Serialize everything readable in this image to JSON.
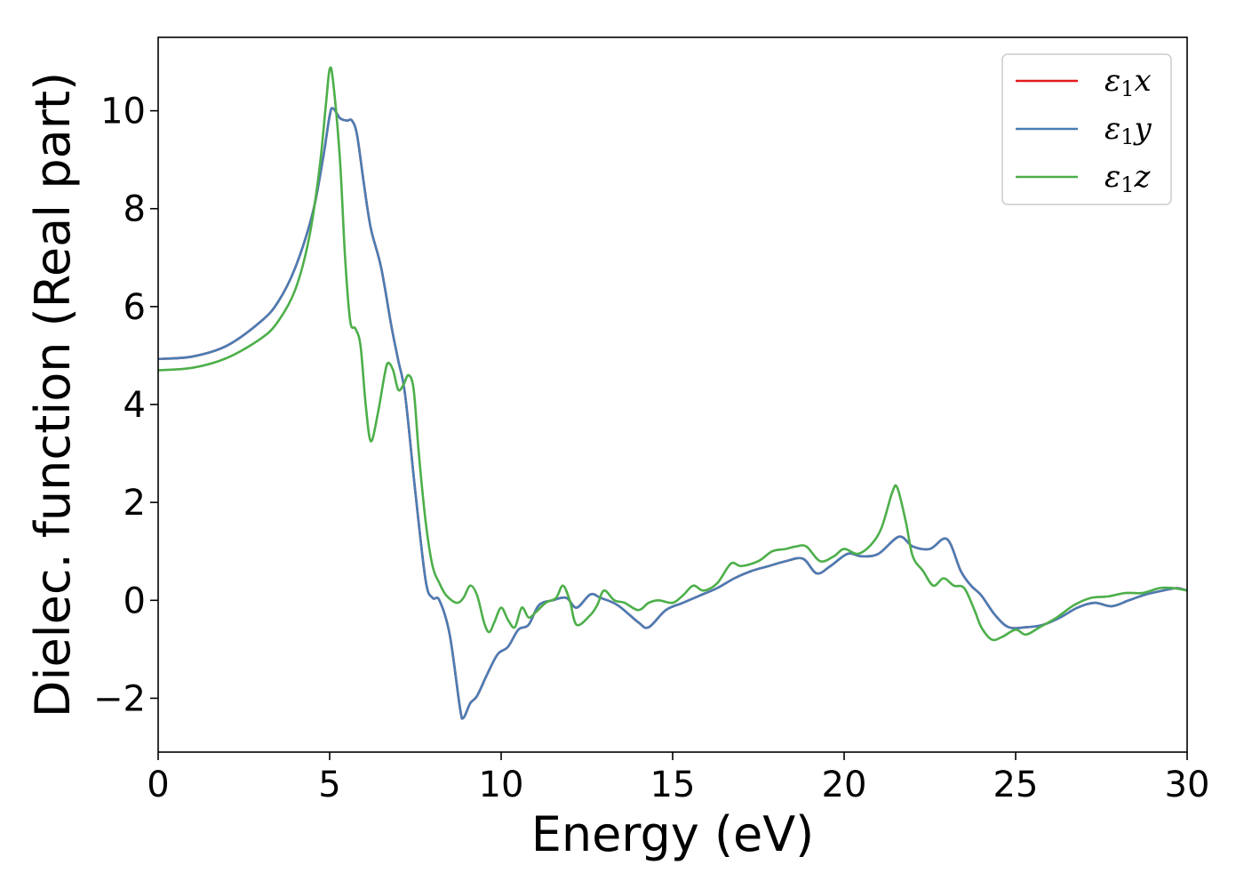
{
  "chart_data": {
    "type": "line",
    "title": "",
    "xlabel": "Energy (eV)",
    "ylabel": "Dielec. function (Real part)",
    "xlim": [
      0,
      30
    ],
    "ylim": [
      -3.1,
      11.5
    ],
    "xticks": [
      0,
      5,
      10,
      15,
      20,
      25,
      30
    ],
    "xtick_labels": [
      "0",
      "5",
      "10",
      "15",
      "20",
      "25",
      "30"
    ],
    "yticks": [
      -2,
      0,
      2,
      4,
      6,
      8,
      10
    ],
    "ytick_labels": [
      "−2",
      "0",
      "2",
      "4",
      "6",
      "8",
      "10"
    ],
    "grid": false,
    "legend": "top-right",
    "series": [
      {
        "name": "ε1x",
        "name_base": "ε",
        "name_sub": "1",
        "name_suffix": "x",
        "color": "#e41a1c",
        "points": [
          [
            0,
            4.93
          ],
          [
            1,
            4.98
          ],
          [
            2,
            5.2
          ],
          [
            3,
            5.7
          ],
          [
            3.5,
            6.1
          ],
          [
            4,
            6.8
          ],
          [
            4.5,
            7.9
          ],
          [
            4.8,
            9.0
          ],
          [
            5.0,
            9.9
          ],
          [
            5.1,
            10.05
          ],
          [
            5.3,
            9.85
          ],
          [
            5.5,
            9.8
          ],
          [
            5.65,
            9.8
          ],
          [
            5.8,
            9.5
          ],
          [
            6.0,
            8.5
          ],
          [
            6.2,
            7.6
          ],
          [
            6.5,
            6.8
          ],
          [
            6.8,
            5.6
          ],
          [
            7.0,
            4.9
          ],
          [
            7.2,
            4.2
          ],
          [
            7.5,
            2.2
          ],
          [
            7.8,
            0.4
          ],
          [
            8.0,
            0.05
          ],
          [
            8.2,
            0.0
          ],
          [
            8.5,
            -0.7
          ],
          [
            8.8,
            -2.2
          ],
          [
            8.9,
            -2.4
          ],
          [
            9.1,
            -2.1
          ],
          [
            9.3,
            -1.95
          ],
          [
            9.6,
            -1.5
          ],
          [
            9.9,
            -1.1
          ],
          [
            10.2,
            -0.95
          ],
          [
            10.5,
            -0.6
          ],
          [
            10.8,
            -0.5
          ],
          [
            11.1,
            -0.1
          ],
          [
            11.5,
            0.0
          ],
          [
            11.9,
            0.05
          ],
          [
            12.2,
            -0.15
          ],
          [
            12.6,
            0.12
          ],
          [
            12.9,
            0.05
          ],
          [
            13.4,
            -0.1
          ],
          [
            14.0,
            -0.45
          ],
          [
            14.3,
            -0.55
          ],
          [
            14.8,
            -0.2
          ],
          [
            15.3,
            -0.05
          ],
          [
            15.8,
            0.1
          ],
          [
            16.3,
            0.25
          ],
          [
            16.8,
            0.45
          ],
          [
            17.3,
            0.6
          ],
          [
            17.8,
            0.7
          ],
          [
            18.3,
            0.8
          ],
          [
            18.8,
            0.85
          ],
          [
            19.2,
            0.55
          ],
          [
            19.6,
            0.7
          ],
          [
            20.1,
            0.95
          ],
          [
            20.5,
            0.9
          ],
          [
            21.0,
            0.95
          ],
          [
            21.6,
            1.3
          ],
          [
            22.0,
            1.1
          ],
          [
            22.5,
            1.05
          ],
          [
            23.0,
            1.25
          ],
          [
            23.4,
            0.6
          ],
          [
            23.7,
            0.3
          ],
          [
            24.0,
            0.1
          ],
          [
            24.4,
            -0.3
          ],
          [
            24.8,
            -0.55
          ],
          [
            25.3,
            -0.55
          ],
          [
            25.8,
            -0.5
          ],
          [
            26.3,
            -0.35
          ],
          [
            26.8,
            -0.15
          ],
          [
            27.3,
            -0.05
          ],
          [
            27.8,
            -0.12
          ],
          [
            28.3,
            0.0
          ],
          [
            28.8,
            0.12
          ],
          [
            29.3,
            0.2
          ],
          [
            29.7,
            0.25
          ],
          [
            30,
            0.2
          ]
        ]
      },
      {
        "name": "ε1y",
        "name_base": "ε",
        "name_sub": "1",
        "name_suffix": "y",
        "color": "#4a7db5",
        "points": [
          [
            0,
            4.93
          ],
          [
            1,
            4.98
          ],
          [
            2,
            5.2
          ],
          [
            3,
            5.7
          ],
          [
            3.5,
            6.1
          ],
          [
            4,
            6.8
          ],
          [
            4.5,
            7.9
          ],
          [
            4.8,
            9.0
          ],
          [
            5.0,
            9.9
          ],
          [
            5.1,
            10.05
          ],
          [
            5.3,
            9.85
          ],
          [
            5.5,
            9.8
          ],
          [
            5.65,
            9.8
          ],
          [
            5.8,
            9.5
          ],
          [
            6.0,
            8.5
          ],
          [
            6.2,
            7.6
          ],
          [
            6.5,
            6.8
          ],
          [
            6.8,
            5.6
          ],
          [
            7.0,
            4.9
          ],
          [
            7.2,
            4.2
          ],
          [
            7.5,
            2.2
          ],
          [
            7.8,
            0.4
          ],
          [
            8.0,
            0.05
          ],
          [
            8.2,
            0.0
          ],
          [
            8.5,
            -0.7
          ],
          [
            8.8,
            -2.2
          ],
          [
            8.9,
            -2.4
          ],
          [
            9.1,
            -2.1
          ],
          [
            9.3,
            -1.95
          ],
          [
            9.6,
            -1.5
          ],
          [
            9.9,
            -1.1
          ],
          [
            10.2,
            -0.95
          ],
          [
            10.5,
            -0.6
          ],
          [
            10.8,
            -0.5
          ],
          [
            11.1,
            -0.1
          ],
          [
            11.5,
            0.0
          ],
          [
            11.9,
            0.05
          ],
          [
            12.2,
            -0.15
          ],
          [
            12.6,
            0.12
          ],
          [
            12.9,
            0.05
          ],
          [
            13.4,
            -0.1
          ],
          [
            14.0,
            -0.45
          ],
          [
            14.3,
            -0.55
          ],
          [
            14.8,
            -0.2
          ],
          [
            15.3,
            -0.05
          ],
          [
            15.8,
            0.1
          ],
          [
            16.3,
            0.25
          ],
          [
            16.8,
            0.45
          ],
          [
            17.3,
            0.6
          ],
          [
            17.8,
            0.7
          ],
          [
            18.3,
            0.8
          ],
          [
            18.8,
            0.85
          ],
          [
            19.2,
            0.55
          ],
          [
            19.6,
            0.7
          ],
          [
            20.1,
            0.95
          ],
          [
            20.5,
            0.9
          ],
          [
            21.0,
            0.95
          ],
          [
            21.6,
            1.3
          ],
          [
            22.0,
            1.1
          ],
          [
            22.5,
            1.05
          ],
          [
            23.0,
            1.25
          ],
          [
            23.4,
            0.6
          ],
          [
            23.7,
            0.3
          ],
          [
            24.0,
            0.1
          ],
          [
            24.4,
            -0.3
          ],
          [
            24.8,
            -0.55
          ],
          [
            25.3,
            -0.55
          ],
          [
            25.8,
            -0.5
          ],
          [
            26.3,
            -0.35
          ],
          [
            26.8,
            -0.15
          ],
          [
            27.3,
            -0.05
          ],
          [
            27.8,
            -0.12
          ],
          [
            28.3,
            0.0
          ],
          [
            28.8,
            0.12
          ],
          [
            29.3,
            0.2
          ],
          [
            29.7,
            0.25
          ],
          [
            30,
            0.2
          ]
        ]
      },
      {
        "name": "ε1z",
        "name_base": "ε",
        "name_sub": "1",
        "name_suffix": "z",
        "color": "#4daf4a",
        "points": [
          [
            0,
            4.7
          ],
          [
            1,
            4.75
          ],
          [
            2,
            4.95
          ],
          [
            3,
            5.35
          ],
          [
            3.5,
            5.7
          ],
          [
            4,
            6.35
          ],
          [
            4.4,
            7.4
          ],
          [
            4.7,
            8.8
          ],
          [
            4.9,
            10.2
          ],
          [
            5.0,
            10.85
          ],
          [
            5.1,
            10.6
          ],
          [
            5.3,
            9.0
          ],
          [
            5.45,
            7.0
          ],
          [
            5.6,
            5.7
          ],
          [
            5.75,
            5.55
          ],
          [
            5.9,
            5.2
          ],
          [
            6.05,
            4.0
          ],
          [
            6.2,
            3.25
          ],
          [
            6.4,
            3.8
          ],
          [
            6.6,
            4.6
          ],
          [
            6.7,
            4.85
          ],
          [
            6.85,
            4.7
          ],
          [
            7.0,
            4.3
          ],
          [
            7.15,
            4.4
          ],
          [
            7.3,
            4.6
          ],
          [
            7.45,
            4.3
          ],
          [
            7.6,
            3.0
          ],
          [
            7.8,
            1.6
          ],
          [
            8.0,
            0.7
          ],
          [
            8.2,
            0.35
          ],
          [
            8.4,
            0.1
          ],
          [
            8.7,
            -0.05
          ],
          [
            8.9,
            0.05
          ],
          [
            9.1,
            0.3
          ],
          [
            9.3,
            0.1
          ],
          [
            9.5,
            -0.45
          ],
          [
            9.65,
            -0.65
          ],
          [
            9.8,
            -0.45
          ],
          [
            10.0,
            -0.15
          ],
          [
            10.2,
            -0.4
          ],
          [
            10.4,
            -0.55
          ],
          [
            10.6,
            -0.15
          ],
          [
            10.8,
            -0.35
          ],
          [
            11.0,
            -0.25
          ],
          [
            11.3,
            -0.05
          ],
          [
            11.6,
            0.05
          ],
          [
            11.8,
            0.3
          ],
          [
            12.0,
            0.0
          ],
          [
            12.2,
            -0.5
          ],
          [
            12.6,
            -0.3
          ],
          [
            12.8,
            -0.1
          ],
          [
            13.0,
            0.2
          ],
          [
            13.3,
            0.0
          ],
          [
            13.6,
            -0.05
          ],
          [
            14.0,
            -0.2
          ],
          [
            14.3,
            -0.05
          ],
          [
            14.6,
            0.0
          ],
          [
            15.0,
            -0.05
          ],
          [
            15.3,
            0.1
          ],
          [
            15.6,
            0.3
          ],
          [
            15.9,
            0.2
          ],
          [
            16.3,
            0.35
          ],
          [
            16.7,
            0.75
          ],
          [
            17.0,
            0.7
          ],
          [
            17.5,
            0.8
          ],
          [
            17.9,
            1.0
          ],
          [
            18.3,
            1.05
          ],
          [
            18.6,
            1.1
          ],
          [
            18.9,
            1.1
          ],
          [
            19.3,
            0.8
          ],
          [
            19.7,
            0.9
          ],
          [
            20.0,
            1.05
          ],
          [
            20.4,
            0.95
          ],
          [
            20.8,
            1.15
          ],
          [
            21.1,
            1.5
          ],
          [
            21.4,
            2.2
          ],
          [
            21.55,
            2.3
          ],
          [
            21.8,
            1.6
          ],
          [
            22.0,
            0.9
          ],
          [
            22.3,
            0.6
          ],
          [
            22.6,
            0.3
          ],
          [
            22.9,
            0.45
          ],
          [
            23.2,
            0.3
          ],
          [
            23.5,
            0.25
          ],
          [
            23.8,
            -0.2
          ],
          [
            24.0,
            -0.55
          ],
          [
            24.3,
            -0.8
          ],
          [
            24.6,
            -0.75
          ],
          [
            25.0,
            -0.6
          ],
          [
            25.3,
            -0.7
          ],
          [
            25.7,
            -0.55
          ],
          [
            26.2,
            -0.35
          ],
          [
            26.7,
            -0.1
          ],
          [
            27.2,
            0.05
          ],
          [
            27.7,
            0.08
          ],
          [
            28.2,
            0.15
          ],
          [
            28.7,
            0.15
          ],
          [
            29.2,
            0.25
          ],
          [
            29.6,
            0.25
          ],
          [
            30,
            0.2
          ]
        ]
      }
    ]
  }
}
